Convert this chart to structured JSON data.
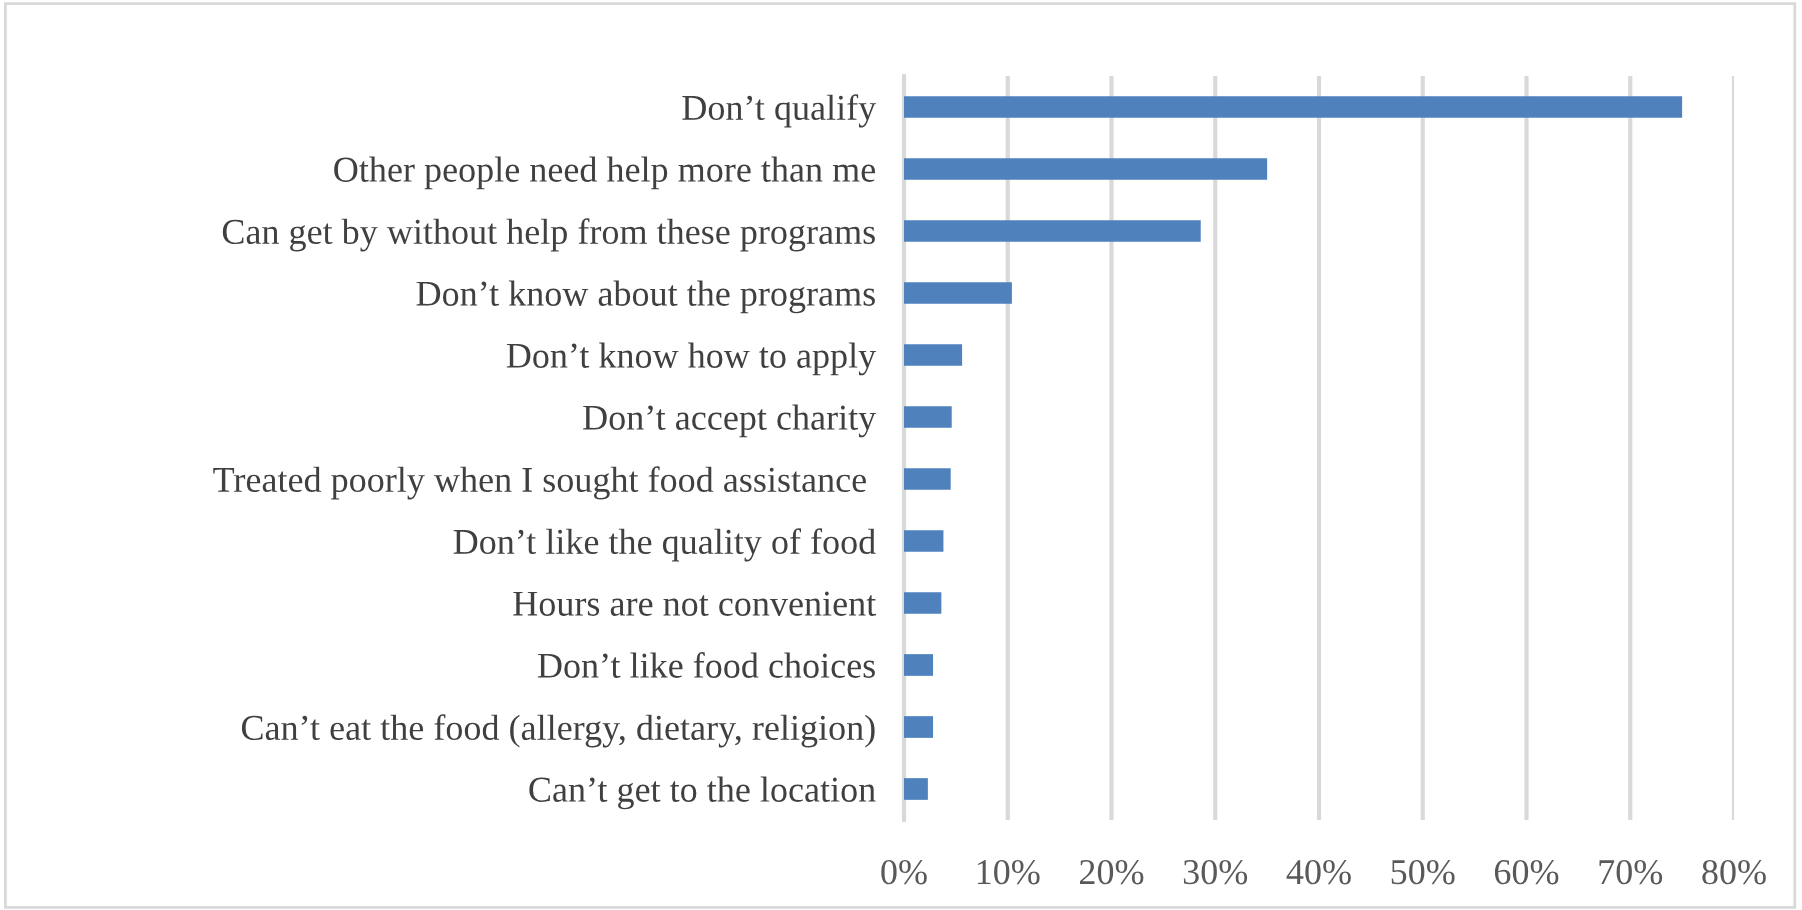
{
  "chart_data": {
    "type": "bar",
    "orientation": "horizontal",
    "categories": [
      "Don’t qualify",
      "Other people need help more than me",
      "Can get by without help from these programs",
      "Don’t know about the programs",
      "Don’t know how to apply",
      "Don’t accept charity",
      "Treated poorly when I sought food assistance ",
      "Don’t like the quality of food",
      "Hours are not convenient",
      "Don’t like food choices",
      "Can’t eat the food (allergy, dietary, religion)",
      "Can’t get to the location"
    ],
    "values": [
      75,
      35,
      28.6,
      10.4,
      5.6,
      4.6,
      4.5,
      3.8,
      3.6,
      2.8,
      2.8,
      2.3
    ],
    "color": "#4f81bd",
    "xlim": [
      0,
      80
    ],
    "xticks": [
      {
        "value": 0,
        "label": "0%"
      },
      {
        "value": 10,
        "label": "10%"
      },
      {
        "value": 20,
        "label": "20%"
      },
      {
        "value": 30,
        "label": "30%"
      },
      {
        "value": 40,
        "label": "40%"
      },
      {
        "value": 50,
        "label": "50%"
      },
      {
        "value": 60,
        "label": "60%"
      },
      {
        "value": 70,
        "label": "70%"
      },
      {
        "value": 80,
        "label": "80%"
      }
    ],
    "grid": "x"
  }
}
